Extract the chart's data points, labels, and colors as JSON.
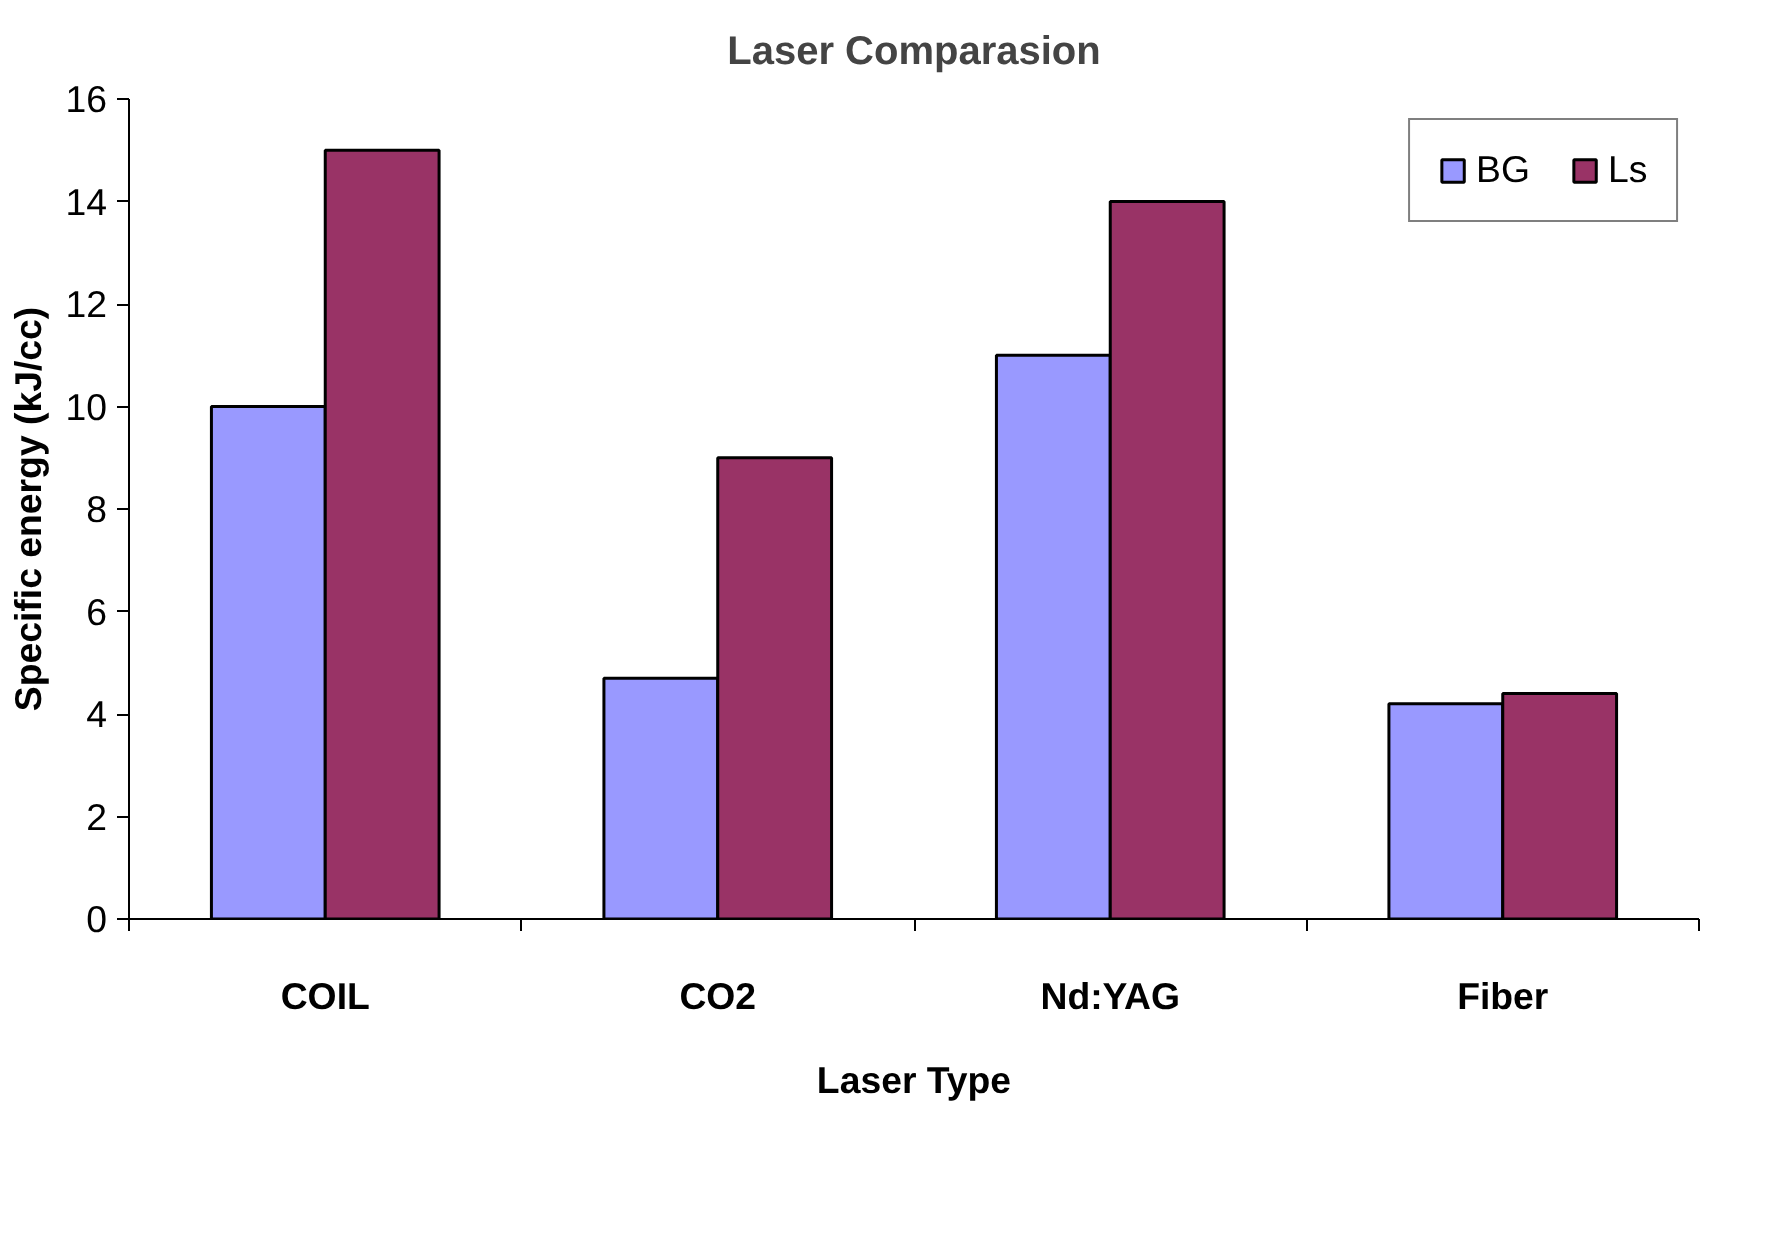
{
  "chart_data": {
    "type": "bar",
    "title": "Laser Comparasion",
    "xlabel": "Laser Type",
    "ylabel": "Specific energy (kJ/cc)",
    "categories": [
      "COIL",
      "CO2",
      "Nd:YAG",
      "Fiber"
    ],
    "series": [
      {
        "name": "BG",
        "color": "#9999ff",
        "values": [
          10,
          4.7,
          11,
          4.2
        ]
      },
      {
        "name": "Ls",
        "color": "#993366",
        "values": [
          15,
          9,
          14,
          4.4
        ]
      }
    ],
    "ylim": [
      0,
      16
    ],
    "yticks": [
      0,
      2,
      4,
      6,
      8,
      10,
      12,
      14,
      16
    ],
    "grid": false,
    "legend": "top right"
  }
}
